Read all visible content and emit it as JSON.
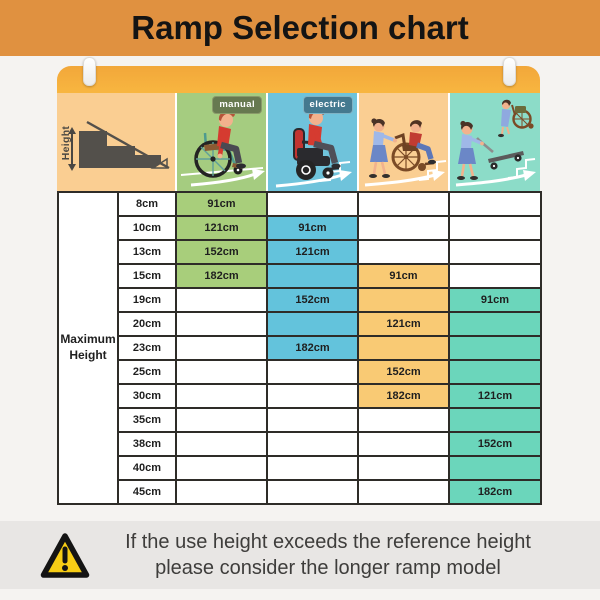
{
  "page": {
    "title": "Ramp Selection chart"
  },
  "colors": {
    "banner": "#e09140",
    "stage_bg": "#f5f3f1",
    "poster_bar": "#f8b640",
    "peach": "#face92",
    "green": "#a5cc80",
    "blue": "#6fc3db",
    "teal": "#8cdcc8",
    "grid": "#2e2c28",
    "text_dark": "#1f1f1f",
    "badge_manual": "#677950",
    "badge_electric": "#44798f",
    "warning_bg": "#e8e6e4",
    "warning_text": "#3e3d3b",
    "warning_yellow": "#f7cd15"
  },
  "header": {
    "height_label": "Height",
    "badges": {
      "manual": "manual",
      "electric": "electric"
    }
  },
  "columns": [
    {
      "id": "manual",
      "fill": "#a8ce7b"
    },
    {
      "id": "electric",
      "fill": "#63c3dc"
    },
    {
      "id": "attendant",
      "fill": "#f9ca74"
    },
    {
      "id": "trolley",
      "fill": "#6bd6bb"
    }
  ],
  "table": {
    "corner_label": "Maximum Height",
    "rows": [
      {
        "label": "8cm",
        "cells": [
          {
            "v": "91cm",
            "f": 1
          },
          {
            "v": "",
            "f": 0
          },
          {
            "v": "",
            "f": 0
          },
          {
            "v": "",
            "f": 0
          }
        ]
      },
      {
        "label": "10cm",
        "cells": [
          {
            "v": "121cm",
            "f": 1
          },
          {
            "v": "91cm",
            "f": 1
          },
          {
            "v": "",
            "f": 0
          },
          {
            "v": "",
            "f": 0
          }
        ]
      },
      {
        "label": "13cm",
        "cells": [
          {
            "v": "152cm",
            "f": 1
          },
          {
            "v": "121cm",
            "f": 1
          },
          {
            "v": "",
            "f": 0
          },
          {
            "v": "",
            "f": 0
          }
        ]
      },
      {
        "label": "15cm",
        "cells": [
          {
            "v": "182cm",
            "f": 1
          },
          {
            "v": "",
            "f": 1
          },
          {
            "v": "91cm",
            "f": 1
          },
          {
            "v": "",
            "f": 0
          }
        ]
      },
      {
        "label": "19cm",
        "cells": [
          {
            "v": "",
            "f": 0
          },
          {
            "v": "152cm",
            "f": 1
          },
          {
            "v": "",
            "f": 1
          },
          {
            "v": "91cm",
            "f": 1
          }
        ]
      },
      {
        "label": "20cm",
        "cells": [
          {
            "v": "",
            "f": 0
          },
          {
            "v": "",
            "f": 1
          },
          {
            "v": "121cm",
            "f": 1
          },
          {
            "v": "",
            "f": 1
          }
        ]
      },
      {
        "label": "23cm",
        "cells": [
          {
            "v": "",
            "f": 0
          },
          {
            "v": "182cm",
            "f": 1
          },
          {
            "v": "",
            "f": 1
          },
          {
            "v": "",
            "f": 1
          }
        ]
      },
      {
        "label": "25cm",
        "cells": [
          {
            "v": "",
            "f": 0
          },
          {
            "v": "",
            "f": 0
          },
          {
            "v": "152cm",
            "f": 1
          },
          {
            "v": "",
            "f": 1
          }
        ]
      },
      {
        "label": "30cm",
        "cells": [
          {
            "v": "",
            "f": 0
          },
          {
            "v": "",
            "f": 0
          },
          {
            "v": "182cm",
            "f": 1
          },
          {
            "v": "121cm",
            "f": 1
          }
        ]
      },
      {
        "label": "35cm",
        "cells": [
          {
            "v": "",
            "f": 0
          },
          {
            "v": "",
            "f": 0
          },
          {
            "v": "",
            "f": 0
          },
          {
            "v": "",
            "f": 1
          }
        ]
      },
      {
        "label": "38cm",
        "cells": [
          {
            "v": "",
            "f": 0
          },
          {
            "v": "",
            "f": 0
          },
          {
            "v": "",
            "f": 0
          },
          {
            "v": "152cm",
            "f": 1
          }
        ]
      },
      {
        "label": "40cm",
        "cells": [
          {
            "v": "",
            "f": 0
          },
          {
            "v": "",
            "f": 0
          },
          {
            "v": "",
            "f": 0
          },
          {
            "v": "",
            "f": 1
          }
        ]
      },
      {
        "label": "45cm",
        "cells": [
          {
            "v": "",
            "f": 0
          },
          {
            "v": "",
            "f": 0
          },
          {
            "v": "",
            "f": 0
          },
          {
            "v": "182cm",
            "f": 1
          }
        ]
      }
    ]
  },
  "warning": {
    "line1": "If the use height exceeds the reference height",
    "line2": "please consider the longer ramp model"
  },
  "chart_data": {
    "type": "table",
    "title": "Ramp Selection chart",
    "row_axis": "Maximum Height",
    "columns": [
      "manual wheelchair",
      "electric wheelchair",
      "attendant wheelchair",
      "hand trolley"
    ],
    "heights": [
      "8cm",
      "10cm",
      "13cm",
      "15cm",
      "19cm",
      "20cm",
      "23cm",
      "25cm",
      "30cm",
      "35cm",
      "38cm",
      "40cm",
      "45cm"
    ],
    "ramp_lengths": {
      "manual": {
        "8cm": "91cm",
        "10cm": "121cm",
        "13cm": "152cm",
        "15cm": "182cm"
      },
      "electric": {
        "10cm": "91cm",
        "13cm": "121cm",
        "19cm": "152cm",
        "23cm": "182cm"
      },
      "attendant": {
        "15cm": "91cm",
        "20cm": "121cm",
        "25cm": "152cm",
        "30cm": "182cm"
      },
      "trolley": {
        "19cm": "91cm",
        "30cm": "121cm",
        "38cm": "152cm",
        "45cm": "182cm"
      }
    },
    "shaded_height_ranges": {
      "manual": [
        "8cm",
        "15cm"
      ],
      "electric": [
        "10cm",
        "23cm"
      ],
      "attendant": [
        "15cm",
        "30cm"
      ],
      "trolley": [
        "19cm",
        "45cm"
      ]
    }
  }
}
